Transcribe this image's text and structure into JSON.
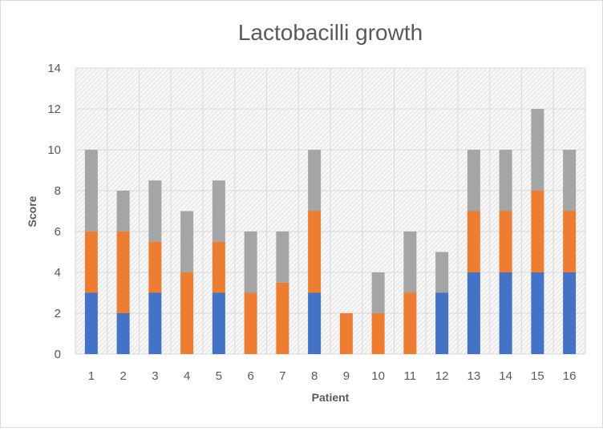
{
  "chart_data": {
    "type": "bar",
    "stacked": true,
    "title": "Lactobacilli growth",
    "xlabel": "Patient",
    "ylabel": "Score",
    "ylim": [
      0,
      14
    ],
    "yticks": [
      "0",
      "2",
      "4",
      "6",
      "8",
      "10",
      "12",
      "14"
    ],
    "categories": [
      "1",
      "2",
      "3",
      "4",
      "5",
      "6",
      "7",
      "8",
      "9",
      "10",
      "11",
      "12",
      "13",
      "14",
      "15",
      "16"
    ],
    "grid": true,
    "legend": "none",
    "plot_background": "hatched-gray",
    "series": [
      {
        "color": "#4472c4",
        "values": [
          3,
          2,
          3,
          0,
          3,
          0,
          0,
          3,
          0,
          0,
          0,
          3,
          4,
          4,
          4,
          4
        ]
      },
      {
        "color": "#ed7d31",
        "values": [
          3,
          4,
          2.5,
          4,
          2.5,
          3,
          3.5,
          4,
          2,
          2,
          3,
          0,
          3,
          3,
          4,
          3
        ]
      },
      {
        "color": "#a5a5a5",
        "values": [
          4,
          2,
          3,
          3,
          3,
          3,
          2.5,
          3,
          0,
          2,
          3,
          2,
          3,
          3,
          4,
          3
        ]
      }
    ]
  }
}
